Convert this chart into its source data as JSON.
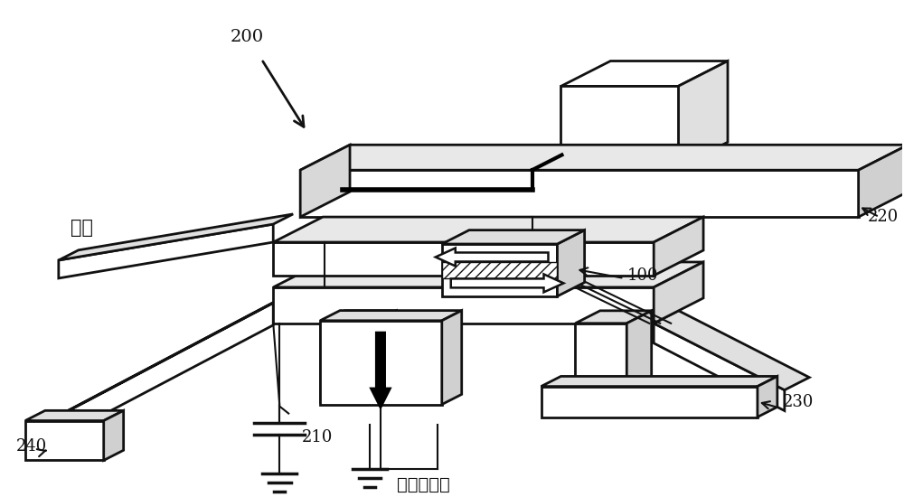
{
  "bg_color": "#ffffff",
  "line_color": "#111111",
  "label_200": "200",
  "label_220": "220",
  "label_230": "230",
  "label_240": "240",
  "label_210": "210",
  "label_100": "100",
  "label_read": "读取",
  "label_transistor": "晶体管接通",
  "annotation_fontsize": 12
}
